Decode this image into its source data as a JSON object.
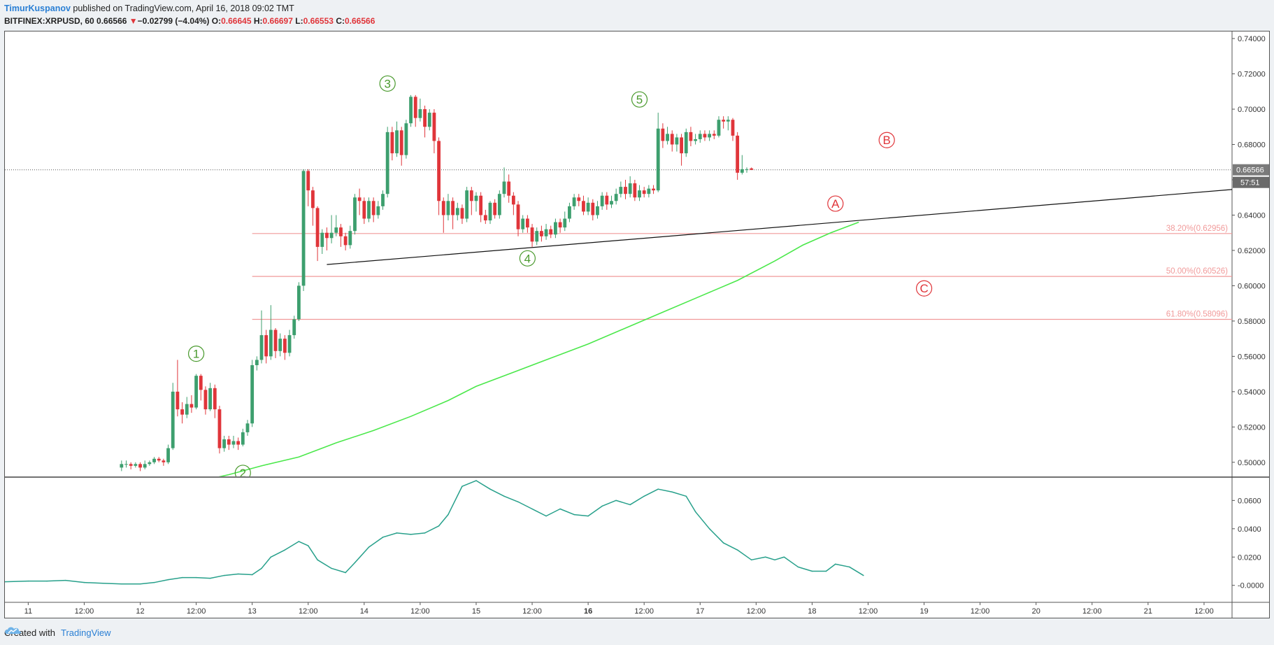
{
  "header": {
    "author": "TimurKuspanov",
    "published_text": "published on TradingView.com, April 16, 2018 09:02 TMT",
    "symbol": "BITFINEX:XRPUSD, 60",
    "last": "0.66566",
    "change": "−0.02799 (−4.04%)",
    "o_label": "O:",
    "o_value": "0.66645",
    "h_label": "H:",
    "h_value": "0.66697",
    "l_label": "L:",
    "l_value": "0.66553",
    "c_label": "C:",
    "c_value": "0.66566"
  },
  "footer": {
    "created_with": "Created with",
    "brand": "TradingView"
  },
  "colors": {
    "up": "#3d9f6e",
    "down": "#e0353a",
    "ma": "#4be84b",
    "fib": "#f19a9a",
    "osc": "#27a08b",
    "osc_neg": "#e0353a",
    "wave_impulse": "#4a9a2e",
    "wave_corrective": "#e0353a"
  },
  "chart_data": {
    "type": "candlestick",
    "ylim": [
      0.492,
      0.744
    ],
    "price_ticks": [
      "0.74000",
      "0.72000",
      "0.70000",
      "0.68000",
      "0.66000",
      "0.64000",
      "0.62000",
      "0.60000",
      "0.58000",
      "0.56000",
      "0.54000",
      "0.52000",
      "0.50000"
    ],
    "price_tick_values": [
      0.74,
      0.72,
      0.7,
      0.68,
      0.66,
      0.64,
      0.62,
      0.6,
      0.58,
      0.56,
      0.54,
      0.52,
      0.5
    ],
    "last_price_label": "0.66566",
    "last_price": 0.66566,
    "countdown_label": "57:51",
    "x_ticks": [
      "11",
      "12:00",
      "12",
      "12:00",
      "13",
      "12:00",
      "14",
      "12:00",
      "15",
      "12:00",
      "16",
      "12:00",
      "17",
      "12:00",
      "18",
      "12:00",
      "19",
      "12:00",
      "20",
      "12:00",
      "21",
      "12:00"
    ],
    "x_tick_bold": [
      "16"
    ],
    "x_range_hours": [
      -5,
      258
    ],
    "fib_levels": [
      {
        "label": "38.20%(0.62956)",
        "value": 0.62956
      },
      {
        "label": "50.00%(0.60526)",
        "value": 0.60526
      },
      {
        "label": "61.80%(0.58096)",
        "value": 0.58096
      }
    ],
    "fib_start_hour": 48,
    "trendline": {
      "from": [
        64,
        0.612
      ],
      "to": [
        258,
        0.6545
      ]
    },
    "moving_average": [
      [
        38,
        0.49
      ],
      [
        43,
        0.493
      ],
      [
        50,
        0.498
      ],
      [
        58,
        0.503
      ],
      [
        66,
        0.511
      ],
      [
        74,
        0.518
      ],
      [
        82,
        0.526
      ],
      [
        90,
        0.535
      ],
      [
        96,
        0.543
      ],
      [
        104,
        0.551
      ],
      [
        112,
        0.559
      ],
      [
        120,
        0.567
      ],
      [
        128,
        0.576
      ],
      [
        136,
        0.585
      ],
      [
        144,
        0.594
      ],
      [
        152,
        0.603
      ],
      [
        160,
        0.614
      ],
      [
        166,
        0.623
      ],
      [
        172,
        0.63
      ],
      [
        178,
        0.636
      ]
    ],
    "candles": [
      [
        20,
        0.497,
        0.499,
        0.501,
        0.495
      ],
      [
        21,
        0.499,
        0.499,
        0.501,
        0.497
      ],
      [
        22,
        0.499,
        0.498,
        0.5,
        0.496
      ],
      [
        23,
        0.498,
        0.499,
        0.5,
        0.497
      ],
      [
        24,
        0.499,
        0.497,
        0.5,
        0.495
      ],
      [
        25,
        0.497,
        0.499,
        0.501,
        0.496
      ],
      [
        26,
        0.499,
        0.5,
        0.501,
        0.498
      ],
      [
        27,
        0.5,
        0.502,
        0.503,
        0.499
      ],
      [
        28,
        0.502,
        0.501,
        0.503,
        0.5
      ],
      [
        29,
        0.501,
        0.5,
        0.502,
        0.498
      ],
      [
        30,
        0.5,
        0.508,
        0.51,
        0.499
      ],
      [
        31,
        0.508,
        0.54,
        0.545,
        0.507
      ],
      [
        32,
        0.54,
        0.53,
        0.558,
        0.526
      ],
      [
        33,
        0.53,
        0.527,
        0.534,
        0.522
      ],
      [
        34,
        0.527,
        0.533,
        0.537,
        0.525
      ],
      [
        35,
        0.533,
        0.531,
        0.538,
        0.528
      ],
      [
        36,
        0.531,
        0.549,
        0.55,
        0.53
      ],
      [
        37,
        0.549,
        0.541,
        0.55,
        0.535
      ],
      [
        38,
        0.541,
        0.53,
        0.543,
        0.527
      ],
      [
        39,
        0.53,
        0.542,
        0.545,
        0.529
      ],
      [
        40,
        0.542,
        0.53,
        0.544,
        0.525
      ],
      [
        41,
        0.53,
        0.508,
        0.532,
        0.505
      ],
      [
        42,
        0.508,
        0.513,
        0.515,
        0.506
      ],
      [
        43,
        0.513,
        0.51,
        0.515,
        0.507
      ],
      [
        44,
        0.51,
        0.512,
        0.515,
        0.508
      ],
      [
        45,
        0.512,
        0.51,
        0.514,
        0.507
      ],
      [
        46,
        0.51,
        0.517,
        0.519,
        0.509
      ],
      [
        47,
        0.517,
        0.522,
        0.524,
        0.515
      ],
      [
        48,
        0.522,
        0.555,
        0.558,
        0.52
      ],
      [
        49,
        0.555,
        0.558,
        0.56,
        0.552
      ],
      [
        50,
        0.558,
        0.572,
        0.586,
        0.556
      ],
      [
        51,
        0.572,
        0.56,
        0.575,
        0.556
      ],
      [
        52,
        0.56,
        0.575,
        0.589,
        0.558
      ],
      [
        53,
        0.575,
        0.563,
        0.576,
        0.559
      ],
      [
        54,
        0.563,
        0.57,
        0.573,
        0.56
      ],
      [
        55,
        0.57,
        0.562,
        0.572,
        0.558
      ],
      [
        56,
        0.562,
        0.572,
        0.575,
        0.56
      ],
      [
        57,
        0.572,
        0.581,
        0.583,
        0.57
      ],
      [
        58,
        0.581,
        0.6,
        0.602,
        0.58
      ],
      [
        59,
        0.6,
        0.665,
        0.666,
        0.597
      ],
      [
        60,
        0.665,
        0.654,
        0.666,
        0.645
      ],
      [
        61,
        0.654,
        0.644,
        0.656,
        0.634
      ],
      [
        62,
        0.644,
        0.622,
        0.645,
        0.614
      ],
      [
        63,
        0.622,
        0.63,
        0.632,
        0.618
      ],
      [
        64,
        0.63,
        0.627,
        0.633,
        0.62
      ],
      [
        65,
        0.627,
        0.63,
        0.64,
        0.624
      ],
      [
        66,
        0.63,
        0.633,
        0.64,
        0.628
      ],
      [
        67,
        0.633,
        0.628,
        0.635,
        0.622
      ],
      [
        68,
        0.628,
        0.623,
        0.63,
        0.62
      ],
      [
        69,
        0.623,
        0.631,
        0.634,
        0.621
      ],
      [
        70,
        0.631,
        0.65,
        0.652,
        0.629
      ],
      [
        71,
        0.65,
        0.648,
        0.655,
        0.64
      ],
      [
        72,
        0.648,
        0.638,
        0.65,
        0.635
      ],
      [
        73,
        0.638,
        0.648,
        0.65,
        0.636
      ],
      [
        74,
        0.648,
        0.64,
        0.65,
        0.636
      ],
      [
        75,
        0.64,
        0.645,
        0.648,
        0.638
      ],
      [
        76,
        0.645,
        0.652,
        0.654,
        0.643
      ],
      [
        77,
        0.652,
        0.687,
        0.69,
        0.65
      ],
      [
        78,
        0.687,
        0.675,
        0.69,
        0.671
      ],
      [
        79,
        0.675,
        0.688,
        0.693,
        0.673
      ],
      [
        80,
        0.688,
        0.674,
        0.69,
        0.668
      ],
      [
        81,
        0.674,
        0.692,
        0.694,
        0.672
      ],
      [
        82,
        0.692,
        0.707,
        0.708,
        0.69
      ],
      [
        83,
        0.707,
        0.695,
        0.708,
        0.69
      ],
      [
        84,
        0.695,
        0.7,
        0.706,
        0.693
      ],
      [
        85,
        0.7,
        0.69,
        0.702,
        0.684
      ],
      [
        86,
        0.69,
        0.698,
        0.7,
        0.688
      ],
      [
        87,
        0.698,
        0.682,
        0.7,
        0.675
      ],
      [
        88,
        0.682,
        0.648,
        0.684,
        0.64
      ],
      [
        89,
        0.648,
        0.64,
        0.65,
        0.63
      ],
      [
        90,
        0.64,
        0.648,
        0.652,
        0.637
      ],
      [
        91,
        0.648,
        0.64,
        0.65,
        0.632
      ],
      [
        92,
        0.64,
        0.644,
        0.647,
        0.637
      ],
      [
        93,
        0.644,
        0.638,
        0.646,
        0.635
      ],
      [
        94,
        0.638,
        0.654,
        0.656,
        0.636
      ],
      [
        95,
        0.654,
        0.648,
        0.656,
        0.64
      ],
      [
        96,
        0.648,
        0.651,
        0.653,
        0.642
      ],
      [
        97,
        0.651,
        0.64,
        0.653,
        0.636
      ],
      [
        98,
        0.64,
        0.637,
        0.643,
        0.635
      ],
      [
        99,
        0.637,
        0.647,
        0.648,
        0.635
      ],
      [
        100,
        0.647,
        0.64,
        0.649,
        0.638
      ],
      [
        101,
        0.64,
        0.652,
        0.654,
        0.638
      ],
      [
        102,
        0.652,
        0.659,
        0.667,
        0.65
      ],
      [
        103,
        0.659,
        0.651,
        0.663,
        0.647
      ],
      [
        104,
        0.651,
        0.646,
        0.653,
        0.64
      ],
      [
        105,
        0.646,
        0.632,
        0.648,
        0.628
      ],
      [
        106,
        0.632,
        0.638,
        0.64,
        0.63
      ],
      [
        107,
        0.638,
        0.633,
        0.64,
        0.63
      ],
      [
        108,
        0.633,
        0.625,
        0.635,
        0.622
      ],
      [
        109,
        0.625,
        0.631,
        0.633,
        0.623
      ],
      [
        110,
        0.631,
        0.628,
        0.634,
        0.625
      ],
      [
        111,
        0.628,
        0.632,
        0.635,
        0.626
      ],
      [
        112,
        0.632,
        0.629,
        0.634,
        0.627
      ],
      [
        113,
        0.629,
        0.636,
        0.638,
        0.627
      ],
      [
        114,
        0.636,
        0.633,
        0.638,
        0.63
      ],
      [
        115,
        0.633,
        0.638,
        0.642,
        0.631
      ],
      [
        116,
        0.638,
        0.645,
        0.647,
        0.636
      ],
      [
        117,
        0.645,
        0.65,
        0.652,
        0.643
      ],
      [
        118,
        0.65,
        0.648,
        0.652,
        0.645
      ],
      [
        119,
        0.648,
        0.642,
        0.651,
        0.64
      ],
      [
        120,
        0.642,
        0.647,
        0.65,
        0.64
      ],
      [
        121,
        0.647,
        0.64,
        0.649,
        0.637
      ],
      [
        122,
        0.64,
        0.645,
        0.648,
        0.638
      ],
      [
        123,
        0.645,
        0.651,
        0.653,
        0.643
      ],
      [
        124,
        0.651,
        0.646,
        0.653,
        0.643
      ],
      [
        125,
        0.646,
        0.648,
        0.651,
        0.644
      ],
      [
        126,
        0.648,
        0.652,
        0.655,
        0.646
      ],
      [
        127,
        0.652,
        0.656,
        0.659,
        0.65
      ],
      [
        128,
        0.656,
        0.652,
        0.66,
        0.649
      ],
      [
        129,
        0.652,
        0.658,
        0.662,
        0.65
      ],
      [
        130,
        0.658,
        0.65,
        0.66,
        0.648
      ],
      [
        131,
        0.65,
        0.654,
        0.657,
        0.648
      ],
      [
        132,
        0.654,
        0.652,
        0.656,
        0.65
      ],
      [
        133,
        0.652,
        0.655,
        0.657,
        0.65
      ],
      [
        134,
        0.655,
        0.654,
        0.657,
        0.652
      ],
      [
        135,
        0.654,
        0.689,
        0.698,
        0.653
      ],
      [
        136,
        0.689,
        0.682,
        0.692,
        0.678
      ],
      [
        137,
        0.682,
        0.686,
        0.69,
        0.68
      ],
      [
        138,
        0.686,
        0.68,
        0.688,
        0.676
      ],
      [
        139,
        0.68,
        0.684,
        0.686,
        0.676
      ],
      [
        140,
        0.684,
        0.675,
        0.686,
        0.668
      ],
      [
        141,
        0.675,
        0.687,
        0.689,
        0.673
      ],
      [
        142,
        0.687,
        0.682,
        0.69,
        0.679
      ],
      [
        143,
        0.682,
        0.683,
        0.686,
        0.68
      ],
      [
        144,
        0.683,
        0.686,
        0.688,
        0.681
      ],
      [
        145,
        0.686,
        0.684,
        0.688,
        0.682
      ],
      [
        146,
        0.684,
        0.686,
        0.688,
        0.682
      ],
      [
        147,
        0.686,
        0.685,
        0.688,
        0.683
      ],
      [
        148,
        0.685,
        0.694,
        0.696,
        0.684
      ],
      [
        149,
        0.694,
        0.693,
        0.696,
        0.689
      ],
      [
        150,
        0.693,
        0.694,
        0.696,
        0.688
      ],
      [
        151,
        0.694,
        0.685,
        0.695,
        0.682
      ],
      [
        152,
        0.685,
        0.664,
        0.687,
        0.66
      ],
      [
        153,
        0.664,
        0.666,
        0.674,
        0.663
      ],
      [
        154,
        0.666,
        0.666,
        0.667,
        0.664
      ],
      [
        155,
        0.66645,
        0.66566,
        0.66697,
        0.66553
      ]
    ],
    "oscillator": {
      "ylim": [
        -0.012,
        0.076
      ],
      "ticks": [
        "0.0600",
        "0.0400",
        "0.0200",
        "-0.0000"
      ],
      "tick_values": [
        0.06,
        0.04,
        0.02,
        0.0
      ],
      "values": [
        [
          -5,
          0.0025
        ],
        [
          0,
          0.003
        ],
        [
          4,
          0.003
        ],
        [
          8,
          0.0035
        ],
        [
          12,
          0.002
        ],
        [
          16,
          0.0015
        ],
        [
          20,
          0.001
        ],
        [
          24,
          0.001
        ],
        [
          27,
          0.002
        ],
        [
          30,
          0.004
        ],
        [
          33,
          0.0055
        ],
        [
          36,
          0.0055
        ],
        [
          39,
          0.005
        ],
        [
          42,
          0.007
        ],
        [
          45,
          0.008
        ],
        [
          48,
          0.0075
        ],
        [
          50,
          0.012
        ],
        [
          52,
          0.02
        ],
        [
          55,
          0.025
        ],
        [
          58,
          0.031
        ],
        [
          60,
          0.028
        ],
        [
          62,
          0.018
        ],
        [
          65,
          0.012
        ],
        [
          68,
          0.009
        ],
        [
          70,
          0.016
        ],
        [
          73,
          0.027
        ],
        [
          76,
          0.034
        ],
        [
          79,
          0.037
        ],
        [
          82,
          0.036
        ],
        [
          85,
          0.037
        ],
        [
          88,
          0.042
        ],
        [
          90,
          0.05
        ],
        [
          93,
          0.07
        ],
        [
          96,
          0.074
        ],
        [
          99,
          0.068
        ],
        [
          102,
          0.063
        ],
        [
          105,
          0.059
        ],
        [
          108,
          0.054
        ],
        [
          111,
          0.049
        ],
        [
          114,
          0.054
        ],
        [
          117,
          0.05
        ],
        [
          120,
          0.049
        ],
        [
          123,
          0.056
        ],
        [
          126,
          0.06
        ],
        [
          129,
          0.057
        ],
        [
          132,
          0.063
        ],
        [
          135,
          0.068
        ],
        [
          138,
          0.066
        ],
        [
          141,
          0.063
        ],
        [
          143,
          0.052
        ],
        [
          146,
          0.04
        ],
        [
          149,
          0.03
        ],
        [
          152,
          0.025
        ],
        [
          155,
          0.018
        ],
        [
          158,
          0.02
        ],
        [
          160,
          0.018
        ],
        [
          162,
          0.02
        ],
        [
          165,
          0.013
        ],
        [
          168,
          0.01
        ],
        [
          171,
          0.01
        ],
        [
          173,
          0.015
        ],
        [
          176,
          0.013
        ],
        [
          179,
          0.007
        ]
      ]
    },
    "wave_labels": [
      {
        "text": "1",
        "style": "impulse"
      },
      {
        "text": "2",
        "style": "impulse"
      },
      {
        "text": "3",
        "style": "impulse"
      },
      {
        "text": "4",
        "style": "impulse"
      },
      {
        "text": "5",
        "style": "impulse"
      },
      {
        "text": "A",
        "style": "corrective"
      },
      {
        "text": "B",
        "style": "corrective"
      },
      {
        "text": "C",
        "style": "corrective"
      }
    ]
  }
}
